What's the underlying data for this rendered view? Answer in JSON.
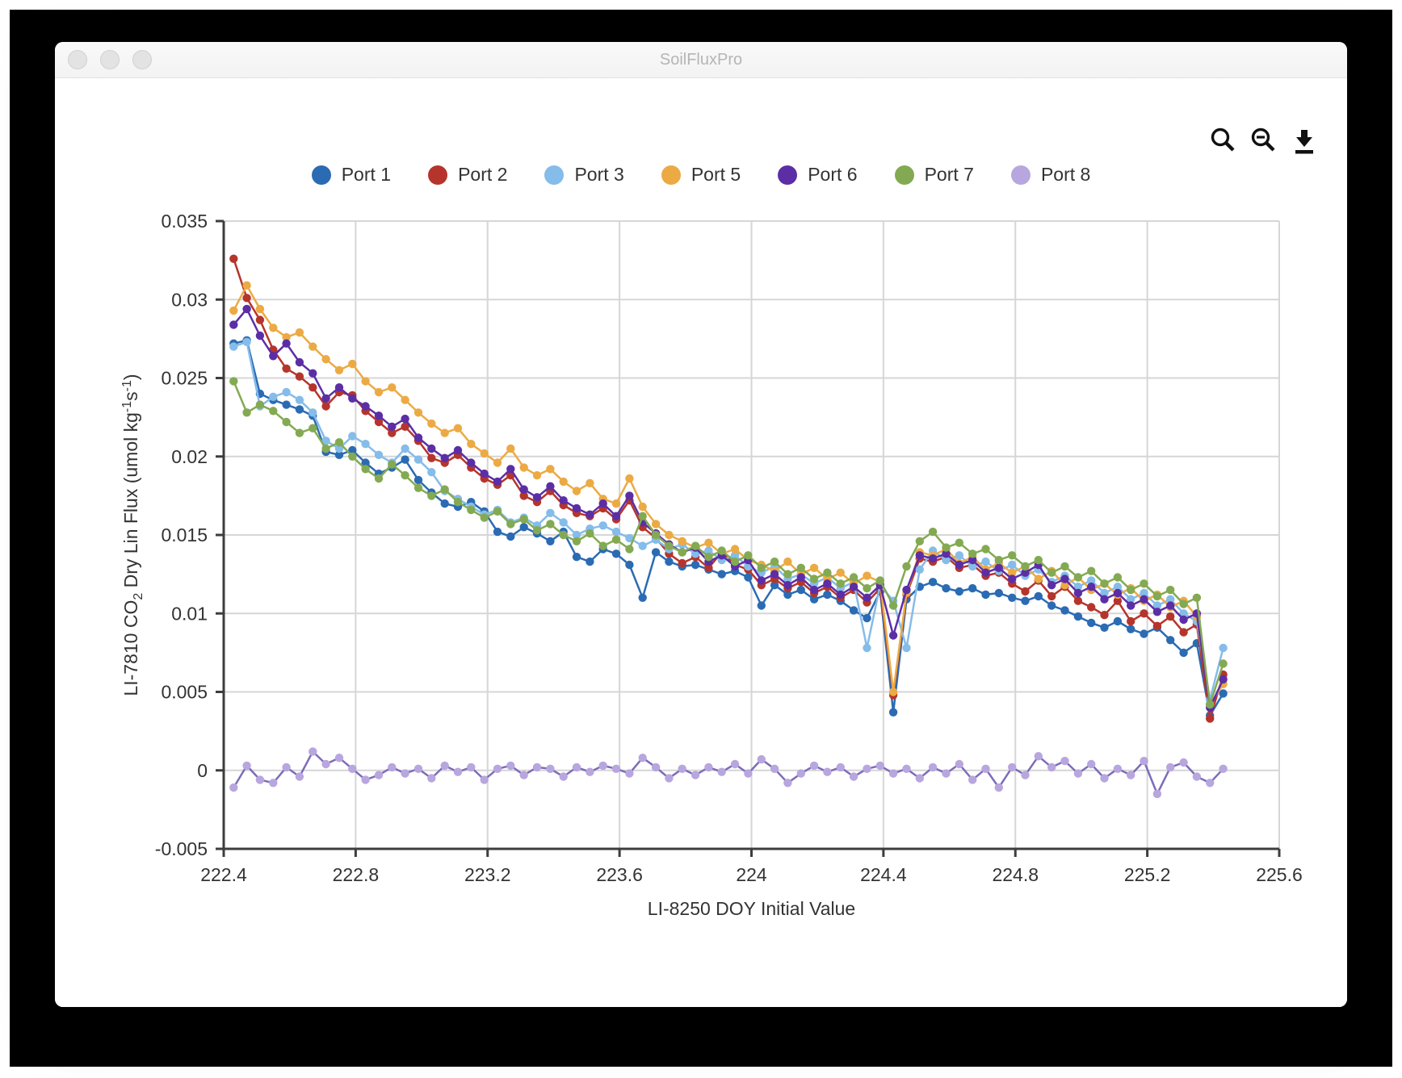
{
  "window": {
    "title": "SoilFluxPro"
  },
  "toolbar": {
    "icons": [
      {
        "name": "zoom-in-icon"
      },
      {
        "name": "zoom-out-icon"
      },
      {
        "name": "download-icon"
      }
    ]
  },
  "colors": {
    "grid": "#d6d6d6",
    "axis": "#3d3d3d",
    "text": "#333333",
    "titlebar_text": "#b5b5b5"
  },
  "chart_data": {
    "type": "line",
    "title": "",
    "xlabel": "LI-8250 DOY Initial Value",
    "ylabel": "LI-7810 CO2 Dry Lin Flux (umol kg-1s-1)",
    "ylabel_parts": [
      {
        "text": "LI-7810 CO"
      },
      {
        "text": "2",
        "style": "sub"
      },
      {
        "text": " Dry Lin Flux (umol kg"
      },
      {
        "text": "-1",
        "style": "sup"
      },
      {
        "text": "s"
      },
      {
        "text": "-1",
        "style": "sup"
      },
      {
        "text": ")"
      }
    ],
    "xlim": [
      222.4,
      225.6
    ],
    "ylim": [
      -0.005,
      0.035
    ],
    "grid": true,
    "legend_position": "top",
    "xticks": [
      222.4,
      222.8,
      223.2,
      223.6,
      224,
      224.4,
      224.8,
      225.2,
      225.6
    ],
    "xtick_labels": [
      "222.4",
      "222.8",
      "223.2",
      "223.6",
      "224",
      "224.4",
      "224.8",
      "225.2",
      "225.6"
    ],
    "yticks": [
      0.035,
      0.03,
      0.025,
      0.02,
      0.015,
      0.01,
      0.005,
      0,
      -0.005
    ],
    "ytick_labels": [
      "0.035",
      "0.03",
      "0.025",
      "0.02",
      "0.015",
      "0.01",
      "0.005",
      "0",
      "-0.005"
    ],
    "x": [
      222.43,
      222.47,
      222.51,
      222.55,
      222.59,
      222.63,
      222.67,
      222.71,
      222.75,
      222.79,
      222.83,
      222.87,
      222.91,
      222.95,
      222.99,
      223.03,
      223.07,
      223.11,
      223.15,
      223.19,
      223.23,
      223.27,
      223.31,
      223.35,
      223.39,
      223.43,
      223.47,
      223.51,
      223.55,
      223.59,
      223.63,
      223.67,
      223.71,
      223.75,
      223.79,
      223.83,
      223.87,
      223.91,
      223.95,
      223.99,
      224.03,
      224.07,
      224.11,
      224.15,
      224.19,
      224.23,
      224.27,
      224.31,
      224.35,
      224.39,
      224.43,
      224.47,
      224.51,
      224.55,
      224.59,
      224.63,
      224.67,
      224.71,
      224.75,
      224.79,
      224.83,
      224.87,
      224.91,
      224.95,
      224.99,
      225.03,
      225.07,
      225.11,
      225.15,
      225.19,
      225.23,
      225.27,
      225.31,
      225.35,
      225.39,
      225.43
    ],
    "series": [
      {
        "name": "Port 1",
        "color": "#2b6bb3",
        "values": [
          0.0272,
          0.0274,
          0.024,
          0.0236,
          0.0233,
          0.023,
          0.0226,
          0.0203,
          0.0201,
          0.0204,
          0.0196,
          0.0189,
          0.0193,
          0.0198,
          0.0185,
          0.0177,
          0.017,
          0.0168,
          0.0171,
          0.0165,
          0.0152,
          0.0149,
          0.0155,
          0.0151,
          0.0146,
          0.0152,
          0.0136,
          0.0133,
          0.0141,
          0.0138,
          0.0131,
          0.011,
          0.0139,
          0.0133,
          0.013,
          0.0131,
          0.0128,
          0.0125,
          0.0127,
          0.0123,
          0.0105,
          0.0118,
          0.0112,
          0.0115,
          0.0109,
          0.0112,
          0.0108,
          0.0102,
          0.0097,
          0.0114,
          0.0037,
          0.0109,
          0.0117,
          0.012,
          0.0116,
          0.0114,
          0.0116,
          0.0112,
          0.0113,
          0.011,
          0.0108,
          0.0111,
          0.0105,
          0.0102,
          0.0098,
          0.0094,
          0.0091,
          0.0095,
          0.009,
          0.0087,
          0.0091,
          0.0083,
          0.0075,
          0.0081,
          0.0035,
          0.0049
        ]
      },
      {
        "name": "Port 2",
        "color": "#b5352c",
        "values": [
          0.0326,
          0.0301,
          0.0287,
          0.0268,
          0.0256,
          0.0251,
          0.0244,
          0.0232,
          0.0241,
          0.0239,
          0.0229,
          0.0222,
          0.0215,
          0.0219,
          0.021,
          0.0199,
          0.0196,
          0.0201,
          0.0193,
          0.0186,
          0.0182,
          0.0188,
          0.0175,
          0.0171,
          0.0178,
          0.0169,
          0.0164,
          0.0162,
          0.0167,
          0.016,
          0.0172,
          0.0155,
          0.0148,
          0.0138,
          0.0132,
          0.0136,
          0.0129,
          0.0139,
          0.0131,
          0.0128,
          0.0118,
          0.0122,
          0.0116,
          0.012,
          0.0113,
          0.0117,
          0.011,
          0.0115,
          0.0107,
          0.0116,
          0.0048,
          0.0112,
          0.0135,
          0.0133,
          0.0136,
          0.0129,
          0.0131,
          0.0124,
          0.0126,
          0.0119,
          0.0114,
          0.0121,
          0.0111,
          0.0117,
          0.0108,
          0.0104,
          0.0099,
          0.0108,
          0.0095,
          0.01,
          0.0092,
          0.0098,
          0.0088,
          0.0093,
          0.0033,
          0.0061
        ]
      },
      {
        "name": "Port 3",
        "color": "#85bce9",
        "values": [
          0.027,
          0.0273,
          0.0232,
          0.0238,
          0.0241,
          0.0236,
          0.0228,
          0.021,
          0.0205,
          0.0213,
          0.0208,
          0.0201,
          0.0196,
          0.0205,
          0.0198,
          0.019,
          0.0178,
          0.0173,
          0.0168,
          0.0163,
          0.0166,
          0.0158,
          0.0161,
          0.0156,
          0.0164,
          0.0158,
          0.015,
          0.0154,
          0.0156,
          0.0152,
          0.0148,
          0.0143,
          0.0147,
          0.0141,
          0.0144,
          0.0138,
          0.014,
          0.0134,
          0.0137,
          0.013,
          0.0126,
          0.013,
          0.0122,
          0.0125,
          0.0119,
          0.0123,
          0.0116,
          0.012,
          0.0078,
          0.0118,
          0.0108,
          0.0078,
          0.0128,
          0.014,
          0.0134,
          0.0137,
          0.013,
          0.0133,
          0.0127,
          0.0131,
          0.0124,
          0.0128,
          0.012,
          0.0124,
          0.0117,
          0.0121,
          0.0113,
          0.0117,
          0.0109,
          0.0113,
          0.0105,
          0.0109,
          0.01,
          0.0095,
          0.0045,
          0.0078
        ]
      },
      {
        "name": "Port 5",
        "color": "#ecaa44",
        "values": [
          0.0293,
          0.0309,
          0.0294,
          0.0282,
          0.0276,
          0.0279,
          0.027,
          0.0262,
          0.0255,
          0.0259,
          0.0248,
          0.0241,
          0.0244,
          0.0236,
          0.0228,
          0.0221,
          0.0215,
          0.0218,
          0.0208,
          0.0202,
          0.0196,
          0.0205,
          0.0193,
          0.0188,
          0.0192,
          0.0184,
          0.0178,
          0.0183,
          0.0173,
          0.017,
          0.0186,
          0.0168,
          0.0157,
          0.015,
          0.0146,
          0.0142,
          0.0145,
          0.0138,
          0.0141,
          0.0134,
          0.0131,
          0.0127,
          0.0133,
          0.0125,
          0.0129,
          0.0122,
          0.0126,
          0.0119,
          0.0124,
          0.012,
          0.005,
          0.0113,
          0.0139,
          0.0137,
          0.0141,
          0.0132,
          0.0136,
          0.0128,
          0.0132,
          0.0126,
          0.013,
          0.0122,
          0.0127,
          0.0118,
          0.0123,
          0.0115,
          0.0119,
          0.0112,
          0.0116,
          0.0108,
          0.0112,
          0.0104,
          0.0108,
          0.0098,
          0.0042,
          0.0055
        ]
      },
      {
        "name": "Port 6",
        "color": "#5c2ea6",
        "values": [
          0.0284,
          0.0294,
          0.0277,
          0.0264,
          0.0272,
          0.026,
          0.0253,
          0.0237,
          0.0244,
          0.0237,
          0.0232,
          0.0226,
          0.0219,
          0.0224,
          0.0212,
          0.0205,
          0.0199,
          0.0204,
          0.0196,
          0.0189,
          0.0184,
          0.0192,
          0.0179,
          0.0174,
          0.0181,
          0.0172,
          0.0167,
          0.0163,
          0.017,
          0.0162,
          0.0175,
          0.0158,
          0.0151,
          0.0144,
          0.0139,
          0.0142,
          0.0133,
          0.0137,
          0.013,
          0.0134,
          0.0121,
          0.0125,
          0.0118,
          0.0123,
          0.0115,
          0.0119,
          0.0112,
          0.0117,
          0.011,
          0.0118,
          0.0086,
          0.0115,
          0.0137,
          0.0135,
          0.0138,
          0.0131,
          0.0134,
          0.0126,
          0.0129,
          0.0122,
          0.0126,
          0.0131,
          0.0118,
          0.0122,
          0.0113,
          0.0117,
          0.0109,
          0.0113,
          0.0105,
          0.0109,
          0.0101,
          0.0105,
          0.0096,
          0.01,
          0.004,
          0.0058
        ]
      },
      {
        "name": "Port 7",
        "color": "#83aa52",
        "values": [
          0.0248,
          0.0228,
          0.0233,
          0.0229,
          0.0222,
          0.0215,
          0.0218,
          0.0205,
          0.0209,
          0.02,
          0.0192,
          0.0186,
          0.0195,
          0.0188,
          0.018,
          0.0175,
          0.0179,
          0.0171,
          0.0166,
          0.0161,
          0.0165,
          0.0157,
          0.016,
          0.0153,
          0.0157,
          0.015,
          0.0146,
          0.0151,
          0.0143,
          0.0147,
          0.0141,
          0.0162,
          0.015,
          0.0143,
          0.0139,
          0.0143,
          0.0136,
          0.014,
          0.0133,
          0.0137,
          0.0129,
          0.0133,
          0.0125,
          0.0129,
          0.0122,
          0.0126,
          0.0119,
          0.0123,
          0.0116,
          0.0121,
          0.0105,
          0.013,
          0.0146,
          0.0152,
          0.0142,
          0.0145,
          0.0138,
          0.0141,
          0.0134,
          0.0137,
          0.013,
          0.0134,
          0.0126,
          0.013,
          0.0123,
          0.0127,
          0.0119,
          0.0123,
          0.0115,
          0.0119,
          0.0111,
          0.0115,
          0.0106,
          0.011,
          0.0042,
          0.0068
        ]
      },
      {
        "name": "Port 8",
        "color": "#b8a6de",
        "line_color": "#7d6cba",
        "values": [
          -0.0011,
          0.0003,
          -0.0006,
          -0.0008,
          0.0002,
          -0.0004,
          0.0012,
          0.0004,
          0.0008,
          0.0001,
          -0.0006,
          -0.0003,
          0.0002,
          -0.0002,
          0.0001,
          -0.0005,
          0.0003,
          -0.0001,
          0.0002,
          -0.0006,
          0.0001,
          0.0003,
          -0.0003,
          0.0002,
          0.0001,
          -0.0004,
          0.0002,
          -0.0001,
          0.0003,
          0.0001,
          -0.0002,
          0.0008,
          0.0002,
          -0.0005,
          0.0001,
          -0.0003,
          0.0002,
          -0.0001,
          0.0004,
          -0.0002,
          0.0007,
          0.0001,
          -0.0008,
          -0.0002,
          0.0003,
          -0.0001,
          0.0002,
          -0.0004,
          0.0001,
          0.0003,
          -0.0002,
          0.0001,
          -0.0005,
          0.0002,
          -0.0002,
          0.0004,
          -0.0006,
          0.0001,
          -0.0011,
          0.0002,
          -0.0003,
          0.0009,
          0.0002,
          0.0006,
          -0.0002,
          0.0004,
          -0.0005,
          0.0001,
          -0.0003,
          0.0006,
          -0.0015,
          0.0002,
          0.0005,
          -0.0004,
          -0.0008,
          0.0001
        ]
      }
    ]
  }
}
